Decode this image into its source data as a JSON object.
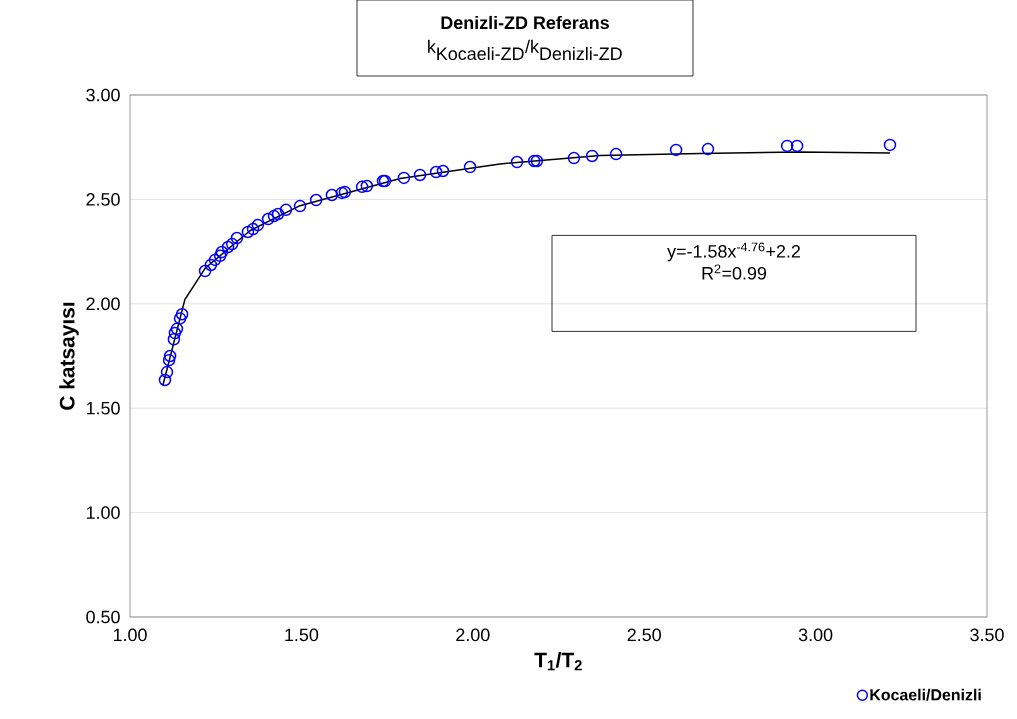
{
  "chart_data": {
    "type": "scatter",
    "title": "Denizli-ZD Referans",
    "subtitle": "\\mbox{k}_{\\mbox{Kocaeli-ZD}}\\mbox{/k}_{\\mbox{Denizli-ZD}}",
    "xlabel": "T$_{1}$/T$_{2}$",
    "ylabel": "C katsayısı",
    "annotations": [
      "y=-1.58x$^{-4.76}$+2.2",
      "R$^{2}$=0.99"
    ],
    "xlim": [
      1.0,
      3.5
    ],
    "ylim": [
      0.5,
      3.0
    ],
    "xticks": [
      {
        "value": 1.0,
        "label": "1.00"
      },
      {
        "value": 1.5,
        "label": "1.50"
      },
      {
        "value": 2.0,
        "label": "2.00"
      },
      {
        "value": 2.5,
        "label": "2.50"
      },
      {
        "value": 3.0,
        "label": "3.00"
      },
      {
        "value": 3.5,
        "label": "3.50"
      }
    ],
    "yticks": [
      {
        "value": 0.5,
        "label": "0.50"
      },
      {
        "value": 1.0,
        "label": "1.00"
      },
      {
        "value": 1.5,
        "label": "1.50"
      },
      {
        "value": 2.0,
        "label": "2.00"
      },
      {
        "value": 2.5,
        "label": "2.50"
      },
      {
        "value": 3.0,
        "label": "3.00"
      }
    ],
    "grid": "y",
    "legend": "bottom right",
    "marker": "circle",
    "series": [
      {
        "name": "Kocaeli/Denizli",
        "color": "#0000ff",
        "x": [
          1.102,
          1.108,
          1.114,
          1.117,
          1.128,
          1.131,
          1.137,
          1.146,
          1.152,
          1.219,
          1.236,
          1.248,
          1.263,
          1.268,
          1.286,
          1.298,
          1.312,
          1.344,
          1.359,
          1.373,
          1.403,
          1.42,
          1.432,
          1.455,
          1.496,
          1.543,
          1.589,
          1.618,
          1.627,
          1.677,
          1.691,
          1.738,
          1.744,
          1.799,
          1.846,
          1.893,
          1.913,
          1.992,
          2.129,
          2.179,
          2.187,
          2.295,
          2.348,
          2.418,
          2.593,
          2.686,
          2.917,
          2.946,
          3.217
        ],
        "values": [
          1.635,
          1.673,
          1.73,
          1.75,
          1.83,
          1.86,
          1.88,
          1.93,
          1.95,
          2.157,
          2.186,
          2.21,
          2.23,
          2.248,
          2.272,
          2.286,
          2.315,
          2.344,
          2.358,
          2.377,
          2.406,
          2.42,
          2.43,
          2.45,
          2.468,
          2.497,
          2.521,
          2.531,
          2.535,
          2.56,
          2.564,
          2.588,
          2.588,
          2.603,
          2.617,
          2.631,
          2.636,
          2.655,
          2.679,
          2.684,
          2.684,
          2.698,
          2.708,
          2.717,
          2.737,
          2.741,
          2.756,
          2.756,
          2.761
        ]
      },
      {
        "type": "line",
        "color": "#000000",
        "marker": "none",
        "x": [
          1.096,
          1.16,
          1.219,
          1.35,
          1.496,
          1.788,
          2.079,
          2.371,
          2.663,
          2.954,
          3.217
        ],
        "values": [
          1.61,
          2.02,
          2.17,
          2.35,
          2.47,
          2.6,
          2.67,
          2.71,
          2.72,
          2.727,
          2.722
        ]
      }
    ]
  }
}
